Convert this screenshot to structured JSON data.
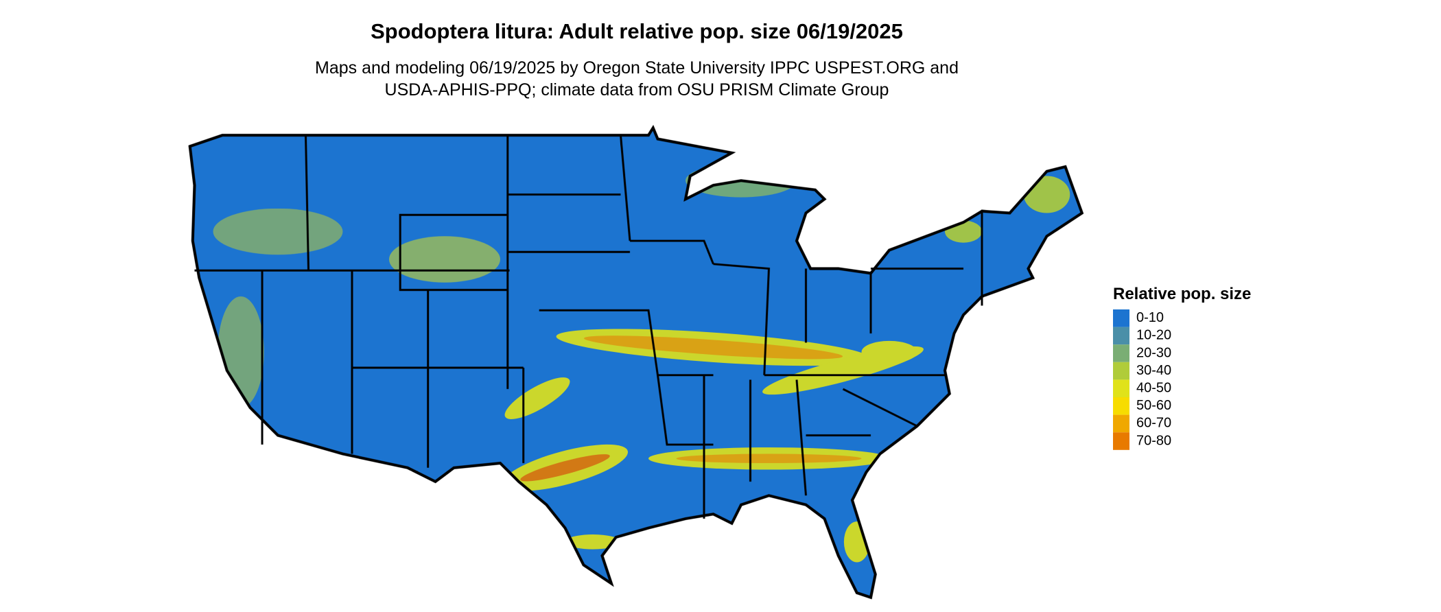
{
  "header": {
    "title": "Spodoptera litura: Adult relative pop. size 06/19/2025",
    "subtitle": [
      "Maps and modeling 06/19/2025 by Oregon State University IPPC USPEST.ORG and",
      "USDA-APHIS-PPQ; climate data from OSU PRISM Climate Group"
    ]
  },
  "legend": {
    "title": "Relative pop. size",
    "items": [
      {
        "label": "0-10",
        "color": "#1c74d0"
      },
      {
        "label": "10-20",
        "color": "#4a8fa8"
      },
      {
        "label": "20-30",
        "color": "#7aae74"
      },
      {
        "label": "30-40",
        "color": "#b0cc3a"
      },
      {
        "label": "40-50",
        "color": "#e0e21a"
      },
      {
        "label": "50-60",
        "color": "#f7dc00"
      },
      {
        "label": "60-70",
        "color": "#f0a800"
      },
      {
        "label": "70-80",
        "color": "#e87a00"
      }
    ]
  }
}
